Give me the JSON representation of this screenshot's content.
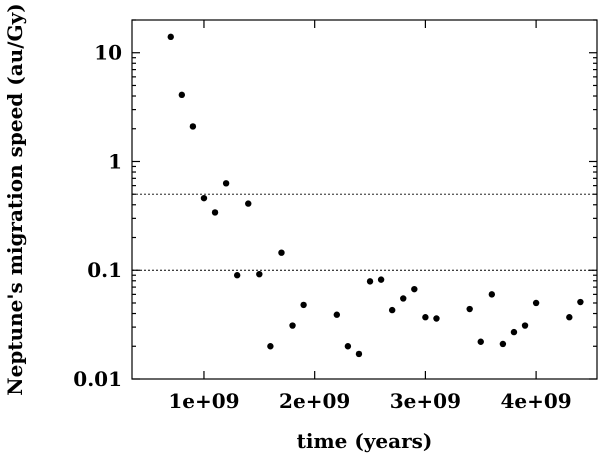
{
  "chart_data": {
    "type": "scatter",
    "title": "",
    "xlabel": "time (years)",
    "ylabel": "Neptune's migration speed (au/Gy)",
    "xlim": [
      350000000,
      4550000000
    ],
    "ylim": [
      0.01,
      20
    ],
    "yscale": "log",
    "grid": false,
    "legend": "none",
    "x_ticks": [
      1000000000,
      2000000000,
      3000000000,
      4000000000
    ],
    "x_tick_labels": [
      "1e+09",
      "2e+09",
      "3e+09",
      "4e+09"
    ],
    "y_ticks": [
      0.01,
      0.1,
      1,
      10
    ],
    "y_tick_labels": [
      "0.01",
      "0.1",
      "1",
      "10"
    ],
    "reference_lines": [
      0.1,
      0.5
    ],
    "marker_color": "#000000",
    "series": [
      {
        "x": [
          700000000,
          800000000,
          900000000,
          1000000000,
          1100000000,
          1200000000,
          1300000000,
          1400000000,
          1500000000,
          1600000000,
          1700000000,
          1800000000,
          1900000000,
          2200000000,
          2300000000,
          2400000000,
          2500000000,
          2600000000,
          2700000000,
          2800000000,
          2900000000,
          3000000000,
          3100000000,
          3400000000,
          3500000000,
          3600000000,
          3700000000,
          3800000000,
          3900000000,
          4000000000,
          4300000000,
          4400000000
        ],
        "y": [
          14,
          4.1,
          2.1,
          0.46,
          0.34,
          0.63,
          0.09,
          0.41,
          0.092,
          0.02,
          0.145,
          0.031,
          0.048,
          0.039,
          0.02,
          0.017,
          0.079,
          0.082,
          0.043,
          0.055,
          0.067,
          0.037,
          0.036,
          0.044,
          0.022,
          0.06,
          0.021,
          0.027,
          0.031,
          0.05,
          0.037,
          0.051
        ]
      }
    ]
  }
}
